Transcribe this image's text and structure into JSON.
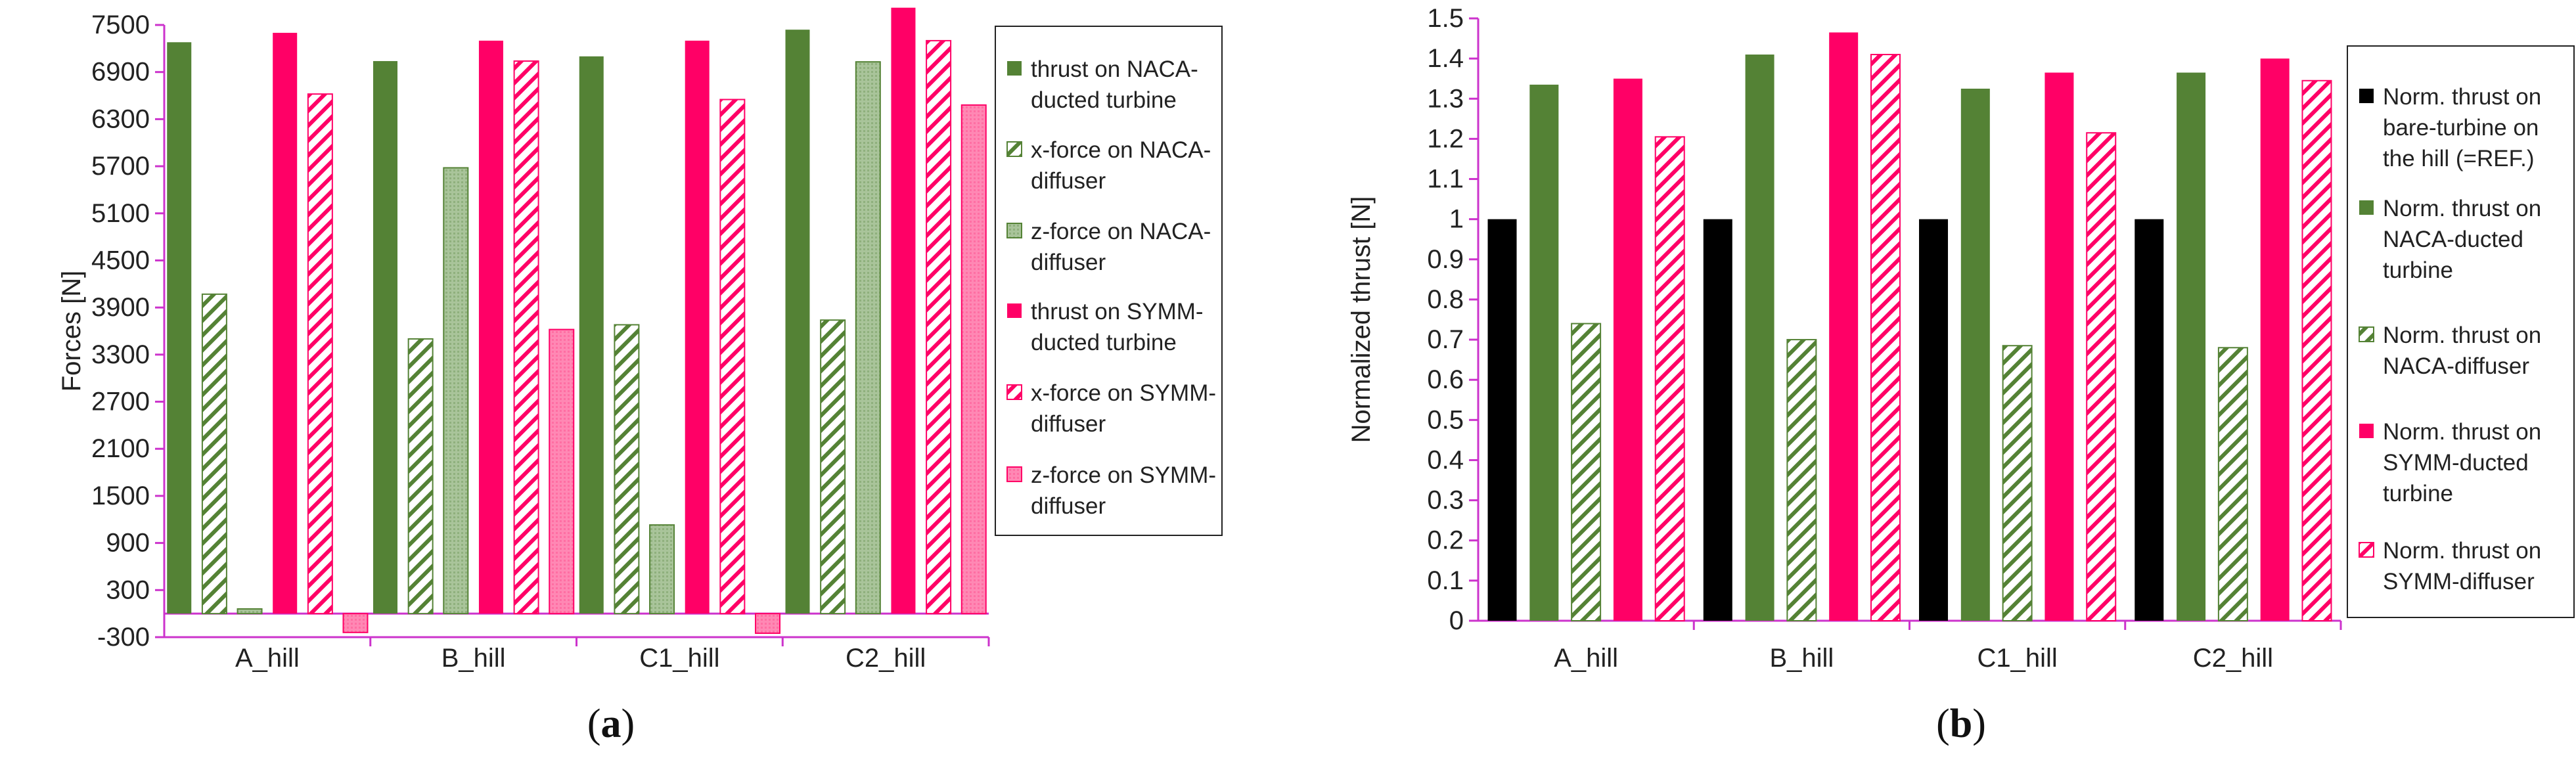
{
  "colors": {
    "naca_green": "#548235",
    "naca_green_light": "#a9c49a",
    "symm_pink": "#ff0066",
    "symm_pink_light": "#ff88b4",
    "bare_black": "#000000",
    "axis_magenta": "#cc33cc"
  },
  "chart_data": [
    {
      "type": "bar",
      "caption": {
        "open": "(",
        "letter": "a",
        "close": ")"
      },
      "ylabel": "Forces [N]",
      "ylim": [
        -300,
        7500
      ],
      "yticks": [
        "-300",
        "300",
        "900",
        "1500",
        "2100",
        "2700",
        "3300",
        "3900",
        "4500",
        "5100",
        "5700",
        "6300",
        "6900",
        "7500"
      ],
      "categories": [
        "A_hill",
        "B_hill",
        "C1_hill",
        "C2_hill"
      ],
      "legend_position": "right",
      "series": [
        {
          "name": "thrust on NACA-ducted turbine",
          "legend_lines": [
            "thrust on NACA-",
            "ducted turbine"
          ],
          "values": [
            7280,
            7040,
            7100,
            7440
          ],
          "style": "solid-green"
        },
        {
          "name": "x-force on NACA-diffuser",
          "legend_lines": [
            "x-force on NACA-",
            "diffuser"
          ],
          "values": [
            4070,
            3500,
            3680,
            3740
          ],
          "style": "hatch-green"
        },
        {
          "name": "z-force on NACA-diffuser",
          "legend_lines": [
            "z-force on NACA-",
            "diffuser"
          ],
          "values": [
            60,
            5680,
            1130,
            7030
          ],
          "style": "light-green"
        },
        {
          "name": "thrust on SYMM-ducted turbine",
          "legend_lines": [
            "thrust on SYMM-",
            "ducted turbine"
          ],
          "values": [
            7400,
            7300,
            7300,
            7720
          ],
          "style": "solid-pink"
        },
        {
          "name": "x-force on SYMM-diffuser",
          "legend_lines": [
            "x-force on SYMM-",
            "diffuser"
          ],
          "values": [
            6620,
            7040,
            6550,
            7300
          ],
          "style": "hatch-pink"
        },
        {
          "name": "z-force on SYMM-diffuser",
          "legend_lines": [
            "z-force on SYMM-",
            "diffuser"
          ],
          "values": [
            -240,
            3620,
            -250,
            6480
          ],
          "style": "light-pink"
        }
      ]
    },
    {
      "type": "bar",
      "caption": {
        "open": "(",
        "letter": "b",
        "close": ")"
      },
      "ylabel": "Normalized thrust [N]",
      "ylim": [
        0,
        1.5
      ],
      "yticks": [
        "0",
        "0.1",
        "0.2",
        "0.3",
        "0.4",
        "0.5",
        "0.6",
        "0.7",
        "0.8",
        "0.9",
        "1",
        "1.1",
        "1.2",
        "1.3",
        "1.4",
        "1.5"
      ],
      "categories": [
        "A_hill",
        "B_hill",
        "C1_hill",
        "C2_hill"
      ],
      "legend_position": "right",
      "series": [
        {
          "name": "Norm. thrust on bare-turbine on the hill (=REF.)",
          "legend_lines": [
            "Norm. thrust on",
            "bare-turbine on",
            "the hill (=REF.)"
          ],
          "values": [
            1.0,
            1.0,
            1.0,
            1.0
          ],
          "style": "solid-black"
        },
        {
          "name": "Norm. thrust on NACA-ducted turbine",
          "legend_lines": [
            "Norm. thrust on",
            "NACA-ducted",
            "turbine"
          ],
          "values": [
            1.335,
            1.41,
            1.325,
            1.365
          ],
          "style": "solid-green"
        },
        {
          "name": "Norm. thrust on NACA-diffuser",
          "legend_lines": [
            "Norm. thrust on",
            "NACA-diffuser"
          ],
          "values": [
            0.74,
            0.7,
            0.685,
            0.68
          ],
          "style": "hatch-green"
        },
        {
          "name": "Norm. thrust on SYMM-ducted turbine",
          "legend_lines": [
            "Norm. thrust on",
            "SYMM-ducted",
            "turbine"
          ],
          "values": [
            1.35,
            1.465,
            1.365,
            1.4
          ],
          "style": "solid-pink"
        },
        {
          "name": "Norm. thrust on SYMM-diffuser",
          "legend_lines": [
            "Norm. thrust on",
            "SYMM-diffuser"
          ],
          "values": [
            1.205,
            1.41,
            1.215,
            1.345
          ],
          "style": "hatch-pink"
        }
      ]
    }
  ]
}
